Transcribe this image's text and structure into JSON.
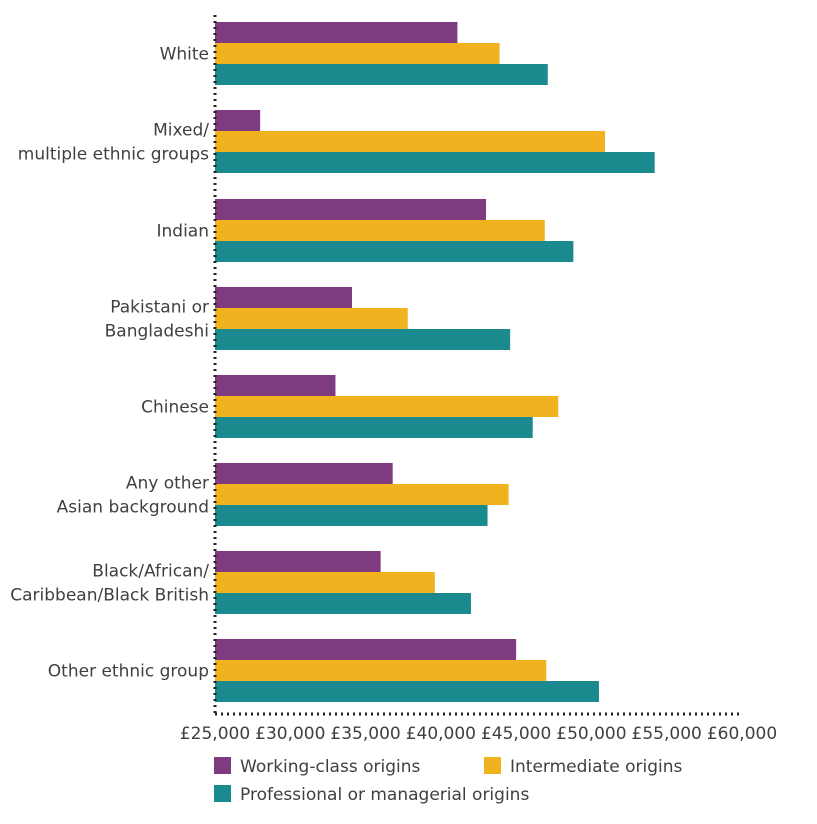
{
  "chart_data": {
    "type": "bar",
    "orientation": "horizontal",
    "title": "",
    "xlabel": "",
    "ylabel": "",
    "xlim": [
      25000,
      60000
    ],
    "x_ticks": [
      25000,
      30000,
      35000,
      40000,
      45000,
      50000,
      55000,
      60000
    ],
    "x_tick_labels": [
      "£25,000",
      "£30,000",
      "£35,000",
      "£40,000",
      "£45,000",
      "£50,000",
      "£55,000",
      "£60,000"
    ],
    "grid": false,
    "legend_position": "bottom",
    "categories": [
      [
        "White"
      ],
      [
        "Mixed/",
        "multiple ethnic groups"
      ],
      [
        "Indian"
      ],
      [
        "Pakistani or",
        "Bangladeshi"
      ],
      [
        "Chinese"
      ],
      [
        "Any other",
        "Asian background"
      ],
      [
        "Black/African/",
        "Caribbean/Black British"
      ],
      [
        "Other ethnic group"
      ]
    ],
    "series": [
      {
        "name": "Working-class origins",
        "color": "#7f3b7f",
        "values": [
          41100,
          28000,
          43000,
          34100,
          33000,
          36800,
          36000,
          45000
        ]
      },
      {
        "name": "Intermediate origins",
        "color": "#f0b21e",
        "values": [
          43900,
          50900,
          46900,
          37800,
          47800,
          44500,
          39600,
          47000
        ]
      },
      {
        "name": "Professional or managerial origins",
        "color": "#1b8a8f",
        "values": [
          47100,
          54200,
          48800,
          44600,
          46100,
          43100,
          42000,
          50500
        ]
      }
    ]
  }
}
